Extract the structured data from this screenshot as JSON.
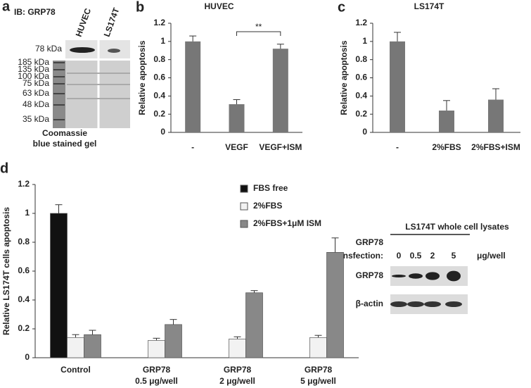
{
  "chart_data": [
    {
      "type": "bar",
      "panel": "b",
      "title": "HUVEC",
      "ylabel": "Relative apoptosis",
      "categories": [
        "-",
        "VEGF",
        "VEGF+ISM"
      ],
      "values": [
        1,
        0.31,
        0.92
      ],
      "errors": [
        0.06,
        0.05,
        0.05
      ],
      "color": "#777777",
      "ylim": [
        0,
        1.2
      ],
      "yticks": [
        0,
        0.2,
        0.4,
        0.6,
        0.8,
        1,
        1.2
      ],
      "annotation": "**"
    },
    {
      "type": "bar",
      "panel": "c",
      "title": "LS174T",
      "ylabel": "Relative apoptosis",
      "categories": [
        "-",
        "2%FBS",
        "2%FBS+ISM"
      ],
      "values": [
        1,
        0.24,
        0.36
      ],
      "errors": [
        0.1,
        0.11,
        0.12
      ],
      "color": "#777777",
      "ylim": [
        0,
        1.2
      ],
      "yticks": [
        0,
        0.2,
        0.4,
        0.6,
        0.8,
        1,
        1.2
      ]
    },
    {
      "type": "grouped_bar",
      "panel": "d",
      "ylabel": "Relative LS174T cells apoptosis",
      "categories": [
        [
          "Control"
        ],
        [
          "GRP78",
          "0.5 μg/well"
        ],
        [
          "GRP78",
          "2 μg/well"
        ],
        [
          "GRP78",
          "5 μg/well"
        ]
      ],
      "series": [
        {
          "name": "FBS free",
          "color": "#111111",
          "values": [
            1,
            null,
            null,
            null
          ],
          "errors": [
            0.06,
            null,
            null,
            null
          ]
        },
        {
          "name": "2%FBS",
          "color": "#f2f2f2",
          "values": [
            0.14,
            0.12,
            0.13,
            0.14
          ],
          "errors": [
            0.02,
            0.015,
            0.015,
            0.015
          ]
        },
        {
          "name": "2%FBS+1μM ISM",
          "color": "#888888",
          "values": [
            0.16,
            0.23,
            0.45,
            0.73
          ],
          "errors": [
            0.03,
            0.035,
            0.015,
            0.1
          ]
        }
      ],
      "ylim": [
        0,
        1.2
      ],
      "yticks": [
        0,
        0.2,
        0.4,
        0.6,
        0.8,
        1,
        1.2
      ]
    }
  ],
  "blot_a": {
    "panel": "a",
    "antibody": "IB: GRP78",
    "lanes": [
      "HUVEC",
      "LS174T"
    ],
    "band": "78 kDa",
    "markers": [
      "185 kDa",
      "135 kDa",
      "100 kDa",
      "75 kDa",
      "63 kDa",
      "48 kDa",
      "35 kDa"
    ],
    "caption": [
      "Coomassie",
      "blue stained gel"
    ]
  },
  "blot_d": {
    "title": "LS174T whole cell lysates",
    "row_label": [
      "GRP78",
      "transfection:"
    ],
    "doses": [
      "0",
      "0.5",
      "2",
      "5"
    ],
    "unit": "μg/well",
    "rows": [
      "GRP78",
      "β-actin"
    ]
  }
}
